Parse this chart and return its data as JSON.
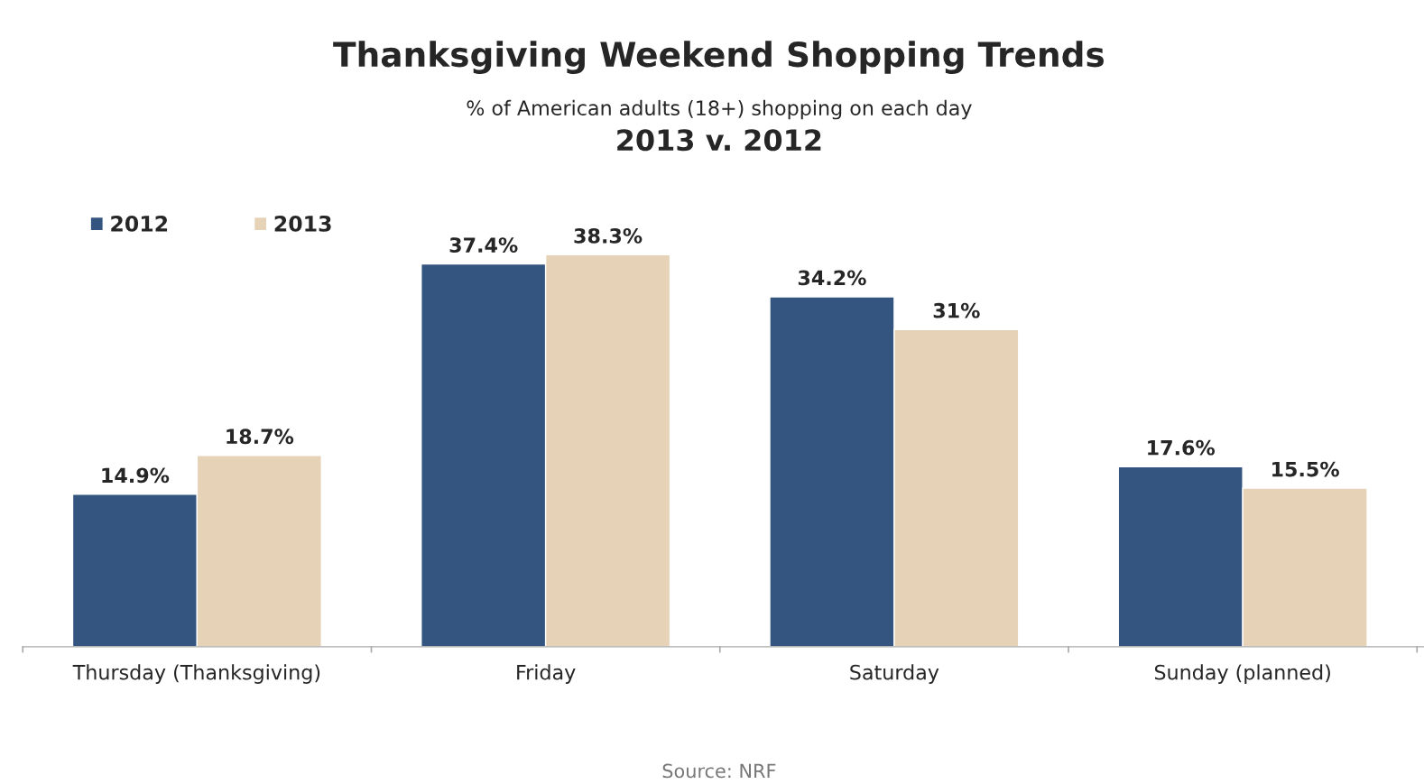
{
  "chart_data": {
    "type": "bar",
    "title": "Thanksgiving Weekend Shopping Trends",
    "subtitle": "% of American adults (18+) shopping on each day\n2013 v. 2012",
    "categories": [
      "Thursday (Thanksgiving)",
      "Friday",
      "Saturday",
      "Sunday (planned)"
    ],
    "series": [
      {
        "name": "2012",
        "color": "#33557f",
        "values": [
          14.9,
          37.4,
          34.2,
          17.6
        ],
        "value_labels": [
          "14.9%",
          "37.4%",
          "34.2%",
          "17.6%"
        ]
      },
      {
        "name": "2013",
        "color": "#e6d3b7",
        "values": [
          18.7,
          38.3,
          31,
          15.5
        ],
        "value_labels": [
          "18.7%",
          "38.3%",
          "31%",
          "15.5%"
        ]
      }
    ],
    "legend": "top left",
    "grid": false,
    "annotations": [
      "Source: NRF"
    ]
  }
}
